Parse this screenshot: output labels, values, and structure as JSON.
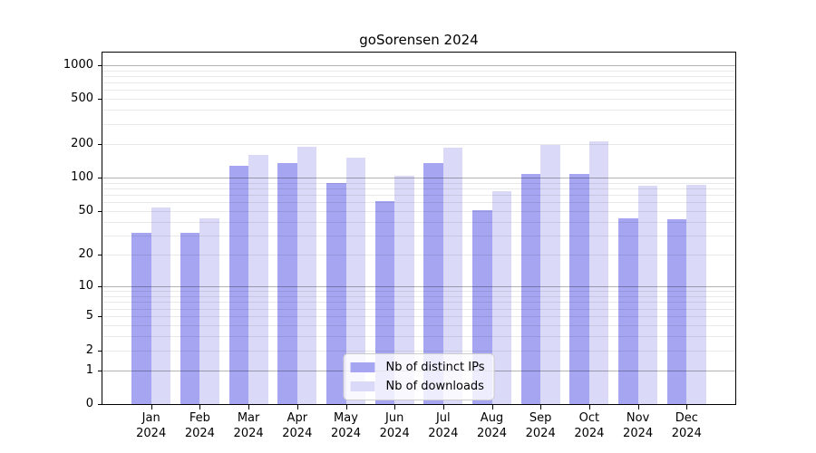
{
  "title": "goSorensen 2024",
  "legend": {
    "items": [
      {
        "label": "Nb of distinct IPs",
        "color": "#a5a5f2"
      },
      {
        "label": "Nb of downloads",
        "color": "#dadaf8"
      }
    ]
  },
  "chart_data": {
    "type": "bar",
    "title": "goSorensen 2024",
    "xlabel": "",
    "ylabel": "",
    "categories": [
      "Jan 2024",
      "Feb 2024",
      "Mar 2024",
      "Apr 2024",
      "May 2024",
      "Jun 2024",
      "Jul 2024",
      "Aug 2024",
      "Sep 2024",
      "Oct 2024",
      "Nov 2024",
      "Dec 2024"
    ],
    "series": [
      {
        "name": "Nb of distinct IPs",
        "color": "#a5a5f2",
        "values": [
          32,
          32,
          127,
          136,
          89,
          62,
          135,
          51,
          108,
          108,
          43,
          42
        ]
      },
      {
        "name": "Nb of downloads",
        "color": "#dadaf8",
        "values": [
          54,
          43,
          158,
          190,
          151,
          103,
          185,
          75,
          196,
          210,
          84,
          86
        ]
      }
    ],
    "yscale": "log1p",
    "yticks": [
      0,
      1,
      2,
      5,
      10,
      20,
      50,
      100,
      200,
      500,
      1000
    ],
    "ylim": [
      0,
      1290
    ],
    "grid": true,
    "grid_major_at": [
      1,
      10,
      100,
      1000
    ],
    "legend_position": "lower center"
  }
}
